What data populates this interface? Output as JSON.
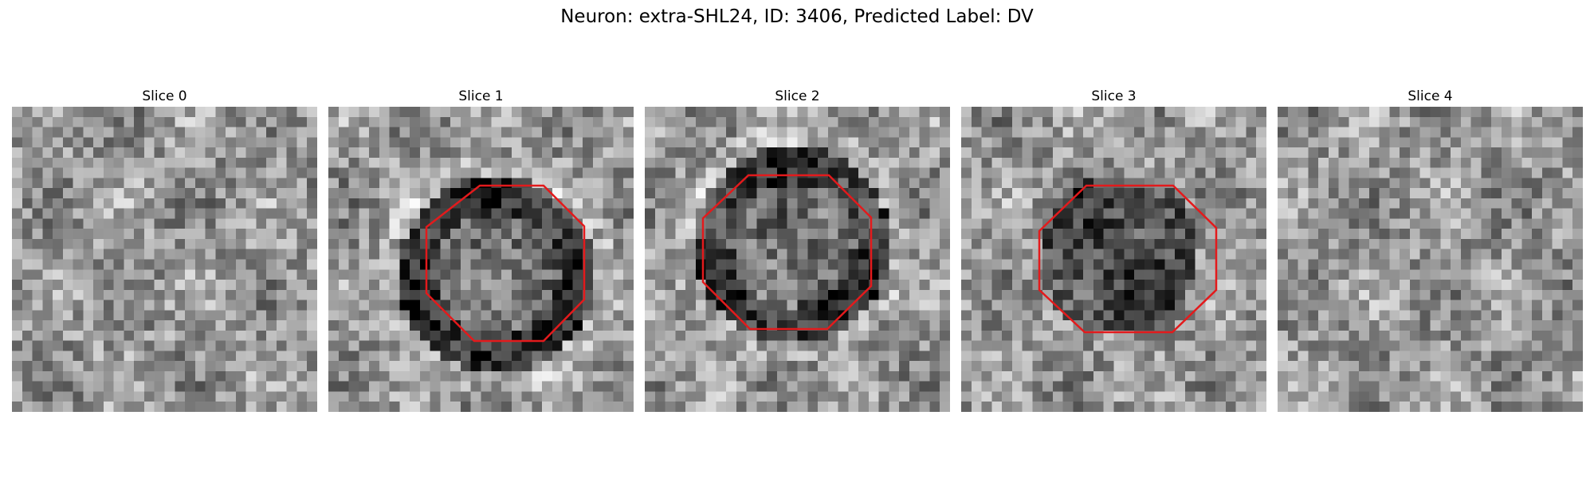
{
  "figure": {
    "title": "Neuron: extra-SHL24, ID: 3406, Predicted Label: DV"
  },
  "slices": [
    {
      "title": "Slice 0",
      "pattern": "texture",
      "has_outline": false
    },
    {
      "title": "Slice 1",
      "pattern": "dark-ring",
      "has_outline": true
    },
    {
      "title": "Slice 2",
      "pattern": "dark-ring",
      "has_outline": true
    },
    {
      "title": "Slice 3",
      "pattern": "dark-blob",
      "has_outline": true
    },
    {
      "title": "Slice 4",
      "pattern": "texture",
      "has_outline": false
    }
  ],
  "outline": {
    "color": "#e31a1c",
    "shape": "octagon"
  },
  "colormap": "gray"
}
